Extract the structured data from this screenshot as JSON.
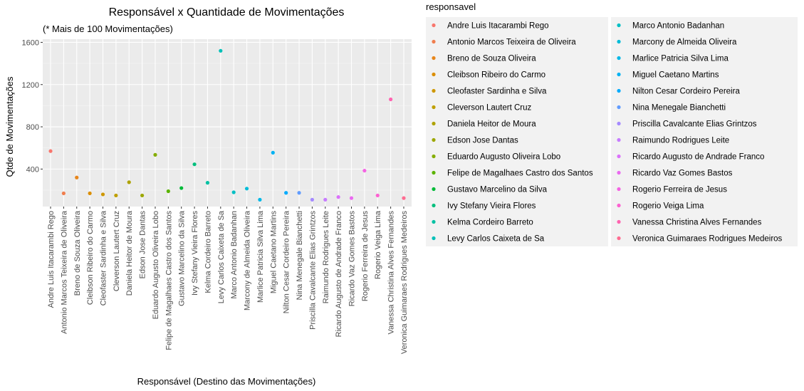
{
  "chart_data": {
    "type": "scatter",
    "title": "Responsável x Quantidade de Movimentações",
    "subtitle": "(* Mais de 100 Movimentações)",
    "xlabel": "Responsável (Destino das Movimentações)",
    "ylabel": "Qtde de Movimentações",
    "ylim": [
      45,
      1630
    ],
    "yticks": [
      400,
      800,
      1200,
      1600
    ],
    "grid": true,
    "legend": {
      "title": "responsavel",
      "placement": "right",
      "columns": 2
    },
    "categories": [
      "Andre Luis Itacarambi Rego",
      "Antonio Marcos Teixeira de Oliveira",
      "Breno de Souza Oliveira",
      "Cleibson Ribeiro do Carmo",
      "Cleofaster Sardinha e Silva",
      "Cleverson Lautert Cruz",
      "Daniela Heitor de Moura",
      "Edson Jose Dantas",
      "Eduardo Augusto Oliveira Lobo",
      "Felipe de Magalhaes Castro dos Santos",
      "Gustavo Marcelino da Silva",
      "Ivy Stefany Vieira Flores",
      "Kelma Cordeiro Barreto",
      "Levy Carlos Caixeta de Sa",
      "Marco Antonio Badanhan",
      "Marcony de Almeida Oliveira",
      "Marlice Patricia Silva Lima",
      "Miguel Caetano Martins",
      "Nilton Cesar Cordeiro Pereira",
      "Nina Menegale Bianchetti",
      "Priscilla Cavalcante Elias Grintzos",
      "Raimundo Rodrigues Leite",
      "Ricardo Augusto de Andrade Franco",
      "Ricardo Vaz Gomes Bastos",
      "Rogerio Ferreira de Jesus",
      "Rogerio Veiga Lima",
      "Vanessa Christina Alves Fernandes",
      "Veronica Guimaraes Rodrigues Medeiros"
    ],
    "values": [
      570,
      170,
      320,
      170,
      160,
      150,
      275,
      150,
      535,
      190,
      220,
      445,
      270,
      1520,
      180,
      215,
      110,
      555,
      175,
      175,
      110,
      110,
      135,
      125,
      385,
      150,
      1060,
      125
    ],
    "colors": [
      "#F8766D",
      "#F07E4E",
      "#E7861B",
      "#DB8E00",
      "#CE9700",
      "#BF9F00",
      "#AEA200",
      "#9CA700",
      "#85AD00",
      "#5BB300",
      "#00BA38",
      "#00BF7D",
      "#00C1A3",
      "#00C0B8",
      "#00BFC4",
      "#00BCD8",
      "#00B8E7",
      "#00B2F3",
      "#00ABFD",
      "#619CFF",
      "#A58AFF",
      "#C77CFF",
      "#DB72FB",
      "#EA6AF0",
      "#F564E3",
      "#FD61D1",
      "#FF64B0",
      "#FF6C91"
    ]
  }
}
